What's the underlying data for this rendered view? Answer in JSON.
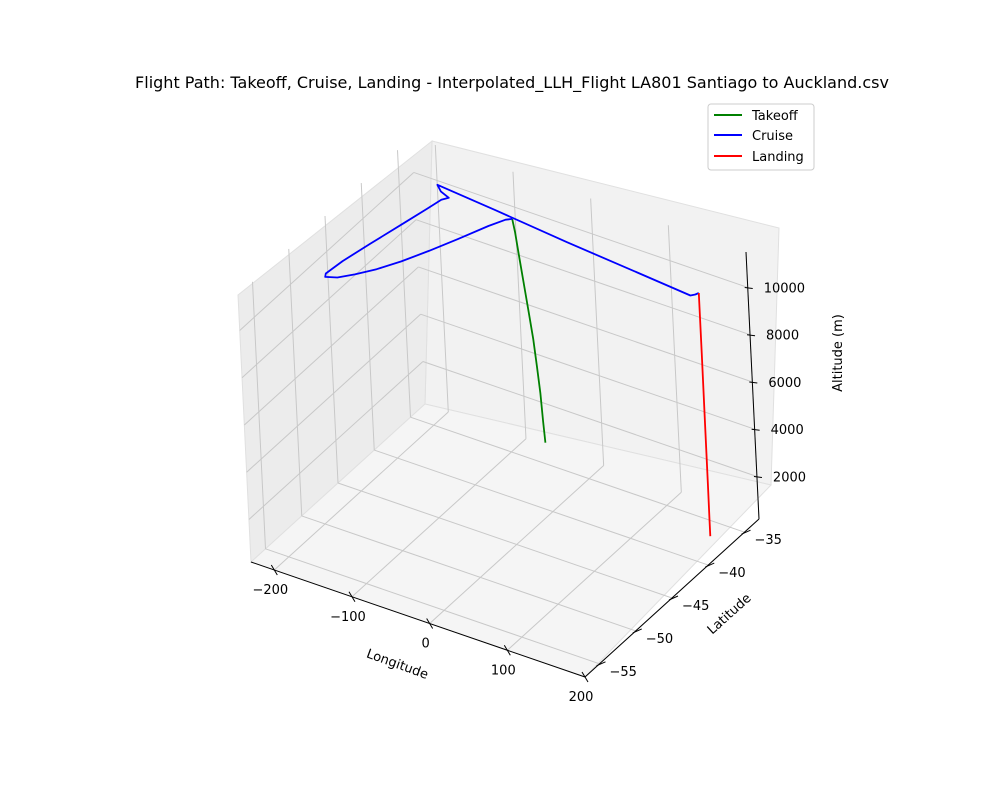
{
  "chart_data": {
    "type": "line3d",
    "title": "Flight Path: Takeoff, Cruise, Landing - Interpolated_LLH_Flight LA801 Santiago to Auckland.csv",
    "xlabel": "Longitude",
    "ylabel": "Latitude",
    "zlabel": "Altitude (m)",
    "xlim": [
      -230,
      200
    ],
    "ylim": [
      -57,
      -33
    ],
    "zlim": [
      200,
      11500
    ],
    "x_ticks": [
      -200,
      -100,
      0,
      100,
      200
    ],
    "y_ticks": [
      -35,
      -40,
      -45,
      -50,
      -55
    ],
    "z_ticks": [
      2000,
      4000,
      6000,
      8000,
      10000
    ],
    "x_tick_labels": [
      "−200",
      "−100",
      "0",
      "100",
      "200"
    ],
    "y_tick_labels": [
      "−35",
      "−40",
      "−45",
      "−50",
      "−55"
    ],
    "z_tick_labels": [
      "2000",
      "4000",
      "6000",
      "8000",
      "10000"
    ],
    "legend_position": "top-right",
    "grid": true,
    "series": [
      {
        "name": "Takeoff",
        "color": "#008000",
        "points": [
          [
            -70.8,
            -33.4,
            475
          ],
          [
            -71.5,
            -33.5,
            1400
          ],
          [
            -72.3,
            -33.6,
            2600
          ],
          [
            -73.2,
            -33.8,
            3800
          ],
          [
            -74.3,
            -34.0,
            5000
          ],
          [
            -75.5,
            -34.3,
            6200
          ],
          [
            -76.8,
            -34.6,
            7400
          ],
          [
            -78.1,
            -34.9,
            8600
          ],
          [
            -79.4,
            -35.2,
            9800
          ],
          [
            -80.2,
            -35.4,
            10400
          ]
        ]
      },
      {
        "name": "Cruise",
        "color": "#0000ff",
        "points": [
          [
            -80.2,
            -35.4,
            10400
          ],
          [
            -83.0,
            -36.0,
            10500
          ],
          [
            -90.0,
            -37.6,
            10600
          ],
          [
            -105.0,
            -40.2,
            10600
          ],
          [
            -120.0,
            -42.6,
            10600
          ],
          [
            -135.0,
            -44.8,
            10600
          ],
          [
            -150.0,
            -46.6,
            10600
          ],
          [
            -165.0,
            -48.0,
            10600
          ],
          [
            -178.0,
            -49.0,
            10600
          ],
          [
            -190.0,
            -49.4,
            10600
          ],
          [
            -193.0,
            -49.0,
            10600
          ],
          [
            -190.0,
            -47.0,
            10600
          ],
          [
            -182.0,
            -44.0,
            10600
          ],
          [
            -172.0,
            -40.5,
            10600
          ],
          [
            -165.0,
            -38.0,
            10600
          ],
          [
            -161.0,
            -36.5,
            10600
          ],
          [
            -156.0,
            -36.0,
            10600
          ],
          [
            -170.0,
            -35.6,
            10600
          ],
          [
            -180.0,
            -35.0,
            10600
          ],
          [
            -100.0,
            -35.6,
            10600
          ],
          [
            0.0,
            -36.4,
            10600
          ],
          [
            100.0,
            -37.1,
            10600
          ],
          [
            170.0,
            -37.6,
            10600
          ],
          [
            173.5,
            -37.3,
            10600
          ],
          [
            175.3,
            -37.0,
            10600
          ]
        ]
      },
      {
        "name": "Landing",
        "color": "#ff0000",
        "points": [
          [
            175.3,
            -37.0,
            10600
          ],
          [
            175.2,
            -37.0,
            8000
          ],
          [
            175.0,
            -37.0,
            5000
          ],
          [
            174.9,
            -37.0,
            2500
          ],
          [
            174.8,
            -37.0,
            1000
          ],
          [
            174.8,
            -37.0,
            300
          ]
        ]
      }
    ]
  }
}
